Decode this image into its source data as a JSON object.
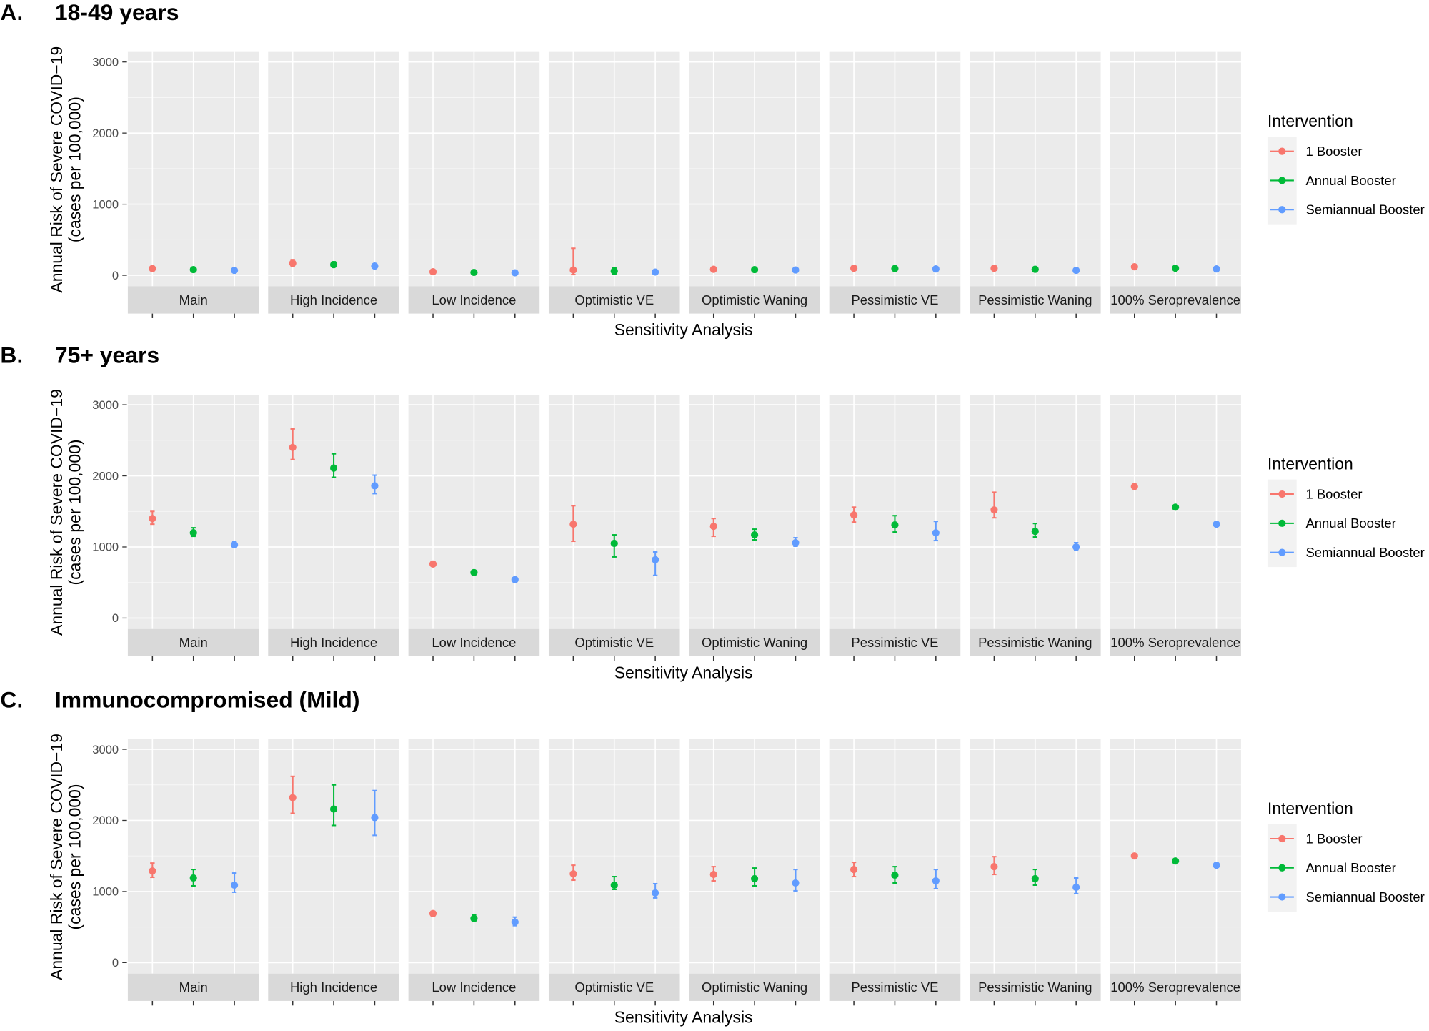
{
  "chart_data": {
    "type": "scatter",
    "subtype": "point-range faceted",
    "x_label": "Sensitivity Analysis",
    "y_label_line1": "Annual Risk of Severe COVID−19",
    "y_label_line2": "(cases per 100,000)",
    "ylim": [
      0,
      3000
    ],
    "y_ticks": [
      "0",
      "1000",
      "2000",
      "3000"
    ],
    "y_tick_values": [
      0,
      1000,
      2000,
      3000
    ],
    "grid": true,
    "facets": [
      "Main",
      "High Incidence",
      "Low Incidence",
      "Optimistic VE",
      "Optimistic Waning",
      "Pessimistic VE",
      "Pessimistic Waning",
      "100% Seroprevalence"
    ],
    "legend": {
      "title": "Intervention",
      "placement": "right",
      "items": [
        "1 Booster",
        "Annual Booster",
        "Semiannual Booster"
      ],
      "colors": [
        "#F8766D",
        "#00BA38",
        "#619CFF"
      ]
    },
    "panels": [
      {
        "letter": "A.",
        "title": "18-49 years",
        "values": [
          [
            [
              95,
              80,
              110
            ],
            [
              80,
              70,
              95
            ],
            [
              70,
              60,
              85
            ]
          ],
          [
            [
              170,
              130,
              220
            ],
            [
              150,
              120,
              190
            ],
            [
              130,
              110,
              150
            ]
          ],
          [
            [
              50,
              40,
              60
            ],
            [
              40,
              35,
              50
            ],
            [
              35,
              30,
              45
            ]
          ],
          [
            [
              75,
              10,
              380
            ],
            [
              60,
              20,
              110
            ],
            [
              45,
              30,
              60
            ]
          ],
          [
            [
              85,
              75,
              95
            ],
            [
              80,
              70,
              90
            ],
            [
              75,
              65,
              85
            ]
          ],
          [
            [
              100,
              90,
              110
            ],
            [
              95,
              85,
              105
            ],
            [
              90,
              80,
              100
            ]
          ],
          [
            [
              100,
              90,
              110
            ],
            [
              85,
              75,
              95
            ],
            [
              70,
              60,
              80
            ]
          ],
          [
            [
              120,
              110,
              130
            ],
            [
              100,
              90,
              110
            ],
            [
              90,
              80,
              100
            ]
          ]
        ]
      },
      {
        "letter": "B.",
        "title": "75+ years",
        "values": [
          [
            [
              1400,
              1320,
              1500
            ],
            [
              1200,
              1150,
              1270
            ],
            [
              1030,
              990,
              1080
            ]
          ],
          [
            [
              2400,
              2230,
              2660
            ],
            [
              2110,
              1980,
              2310
            ],
            [
              1860,
              1750,
              2010
            ]
          ],
          [
            [
              760,
              740,
              780
            ],
            [
              640,
              620,
              660
            ],
            [
              540,
              520,
              560
            ]
          ],
          [
            [
              1320,
              1080,
              1580
            ],
            [
              1050,
              860,
              1170
            ],
            [
              820,
              600,
              930
            ]
          ],
          [
            [
              1290,
              1150,
              1400
            ],
            [
              1170,
              1100,
              1250
            ],
            [
              1060,
              1010,
              1130
            ]
          ],
          [
            [
              1450,
              1350,
              1560
            ],
            [
              1310,
              1210,
              1440
            ],
            [
              1200,
              1090,
              1360
            ]
          ],
          [
            [
              1520,
              1410,
              1770
            ],
            [
              1220,
              1140,
              1330
            ],
            [
              1000,
              960,
              1060
            ]
          ],
          [
            [
              1850,
              1820,
              1880
            ],
            [
              1560,
              1540,
              1580
            ],
            [
              1320,
              1300,
              1340
            ]
          ]
        ]
      },
      {
        "letter": "C.",
        "title": "Immunocompromised (Mild)",
        "values": [
          [
            [
              1290,
              1200,
              1400
            ],
            [
              1190,
              1080,
              1310
            ],
            [
              1090,
              990,
              1260
            ]
          ],
          [
            [
              2320,
              2100,
              2620
            ],
            [
              2160,
              1930,
              2500
            ],
            [
              2040,
              1790,
              2420
            ]
          ],
          [
            [
              690,
              650,
              720
            ],
            [
              620,
              580,
              670
            ],
            [
              570,
              520,
              640
            ]
          ],
          [
            [
              1250,
              1160,
              1370
            ],
            [
              1090,
              1030,
              1210
            ],
            [
              980,
              910,
              1110
            ]
          ],
          [
            [
              1240,
              1150,
              1350
            ],
            [
              1180,
              1080,
              1330
            ],
            [
              1120,
              1010,
              1310
            ]
          ],
          [
            [
              1310,
              1210,
              1410
            ],
            [
              1230,
              1120,
              1350
            ],
            [
              1150,
              1040,
              1310
            ]
          ],
          [
            [
              1350,
              1240,
              1490
            ],
            [
              1180,
              1090,
              1310
            ],
            [
              1060,
              970,
              1190
            ]
          ],
          [
            [
              1500,
              1470,
              1520
            ],
            [
              1430,
              1410,
              1450
            ],
            [
              1370,
              1350,
              1390
            ]
          ]
        ]
      }
    ]
  }
}
